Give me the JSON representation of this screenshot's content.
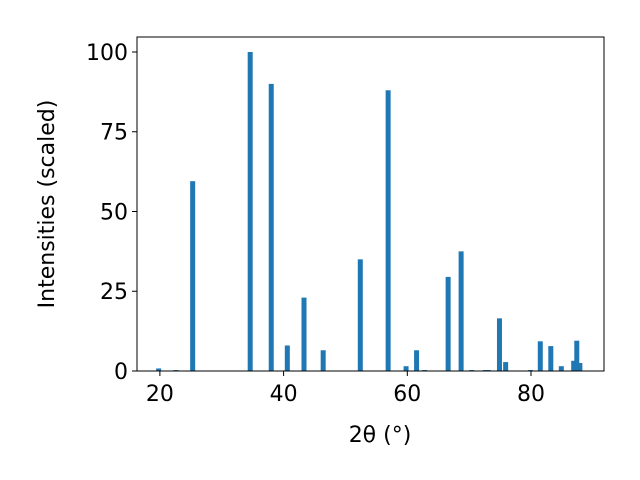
{
  "chart_data": {
    "type": "bar",
    "xlabel": "2θ (°)",
    "ylabel": "Intensities (scaled)",
    "x": [
      19.8,
      22.6,
      25.3,
      34.6,
      38.0,
      40.6,
      43.3,
      46.4,
      52.4,
      56.9,
      59.8,
      61.5,
      62.8,
      66.6,
      68.7,
      70.4,
      72.6,
      73.1,
      74.9,
      75.9,
      79.9,
      81.5,
      83.2,
      84.9,
      86.9,
      87.4,
      87.9
    ],
    "values": [
      0.8,
      0.3,
      59.5,
      100,
      90,
      8,
      23,
      6.5,
      35,
      88,
      1.5,
      6.5,
      0.3,
      29.5,
      37.5,
      0.3,
      0.3,
      0.3,
      16.5,
      2.8,
      0.3,
      9.3,
      7.8,
      1.5,
      3.2,
      9.5,
      2.5
    ],
    "color": "#1f77b4",
    "xlim": [
      16.3,
      91.8
    ],
    "ylim": [
      0,
      104.7
    ],
    "xticks": [
      20,
      40,
      60,
      80
    ],
    "yticks": [
      0,
      25,
      50,
      75,
      100
    ]
  }
}
